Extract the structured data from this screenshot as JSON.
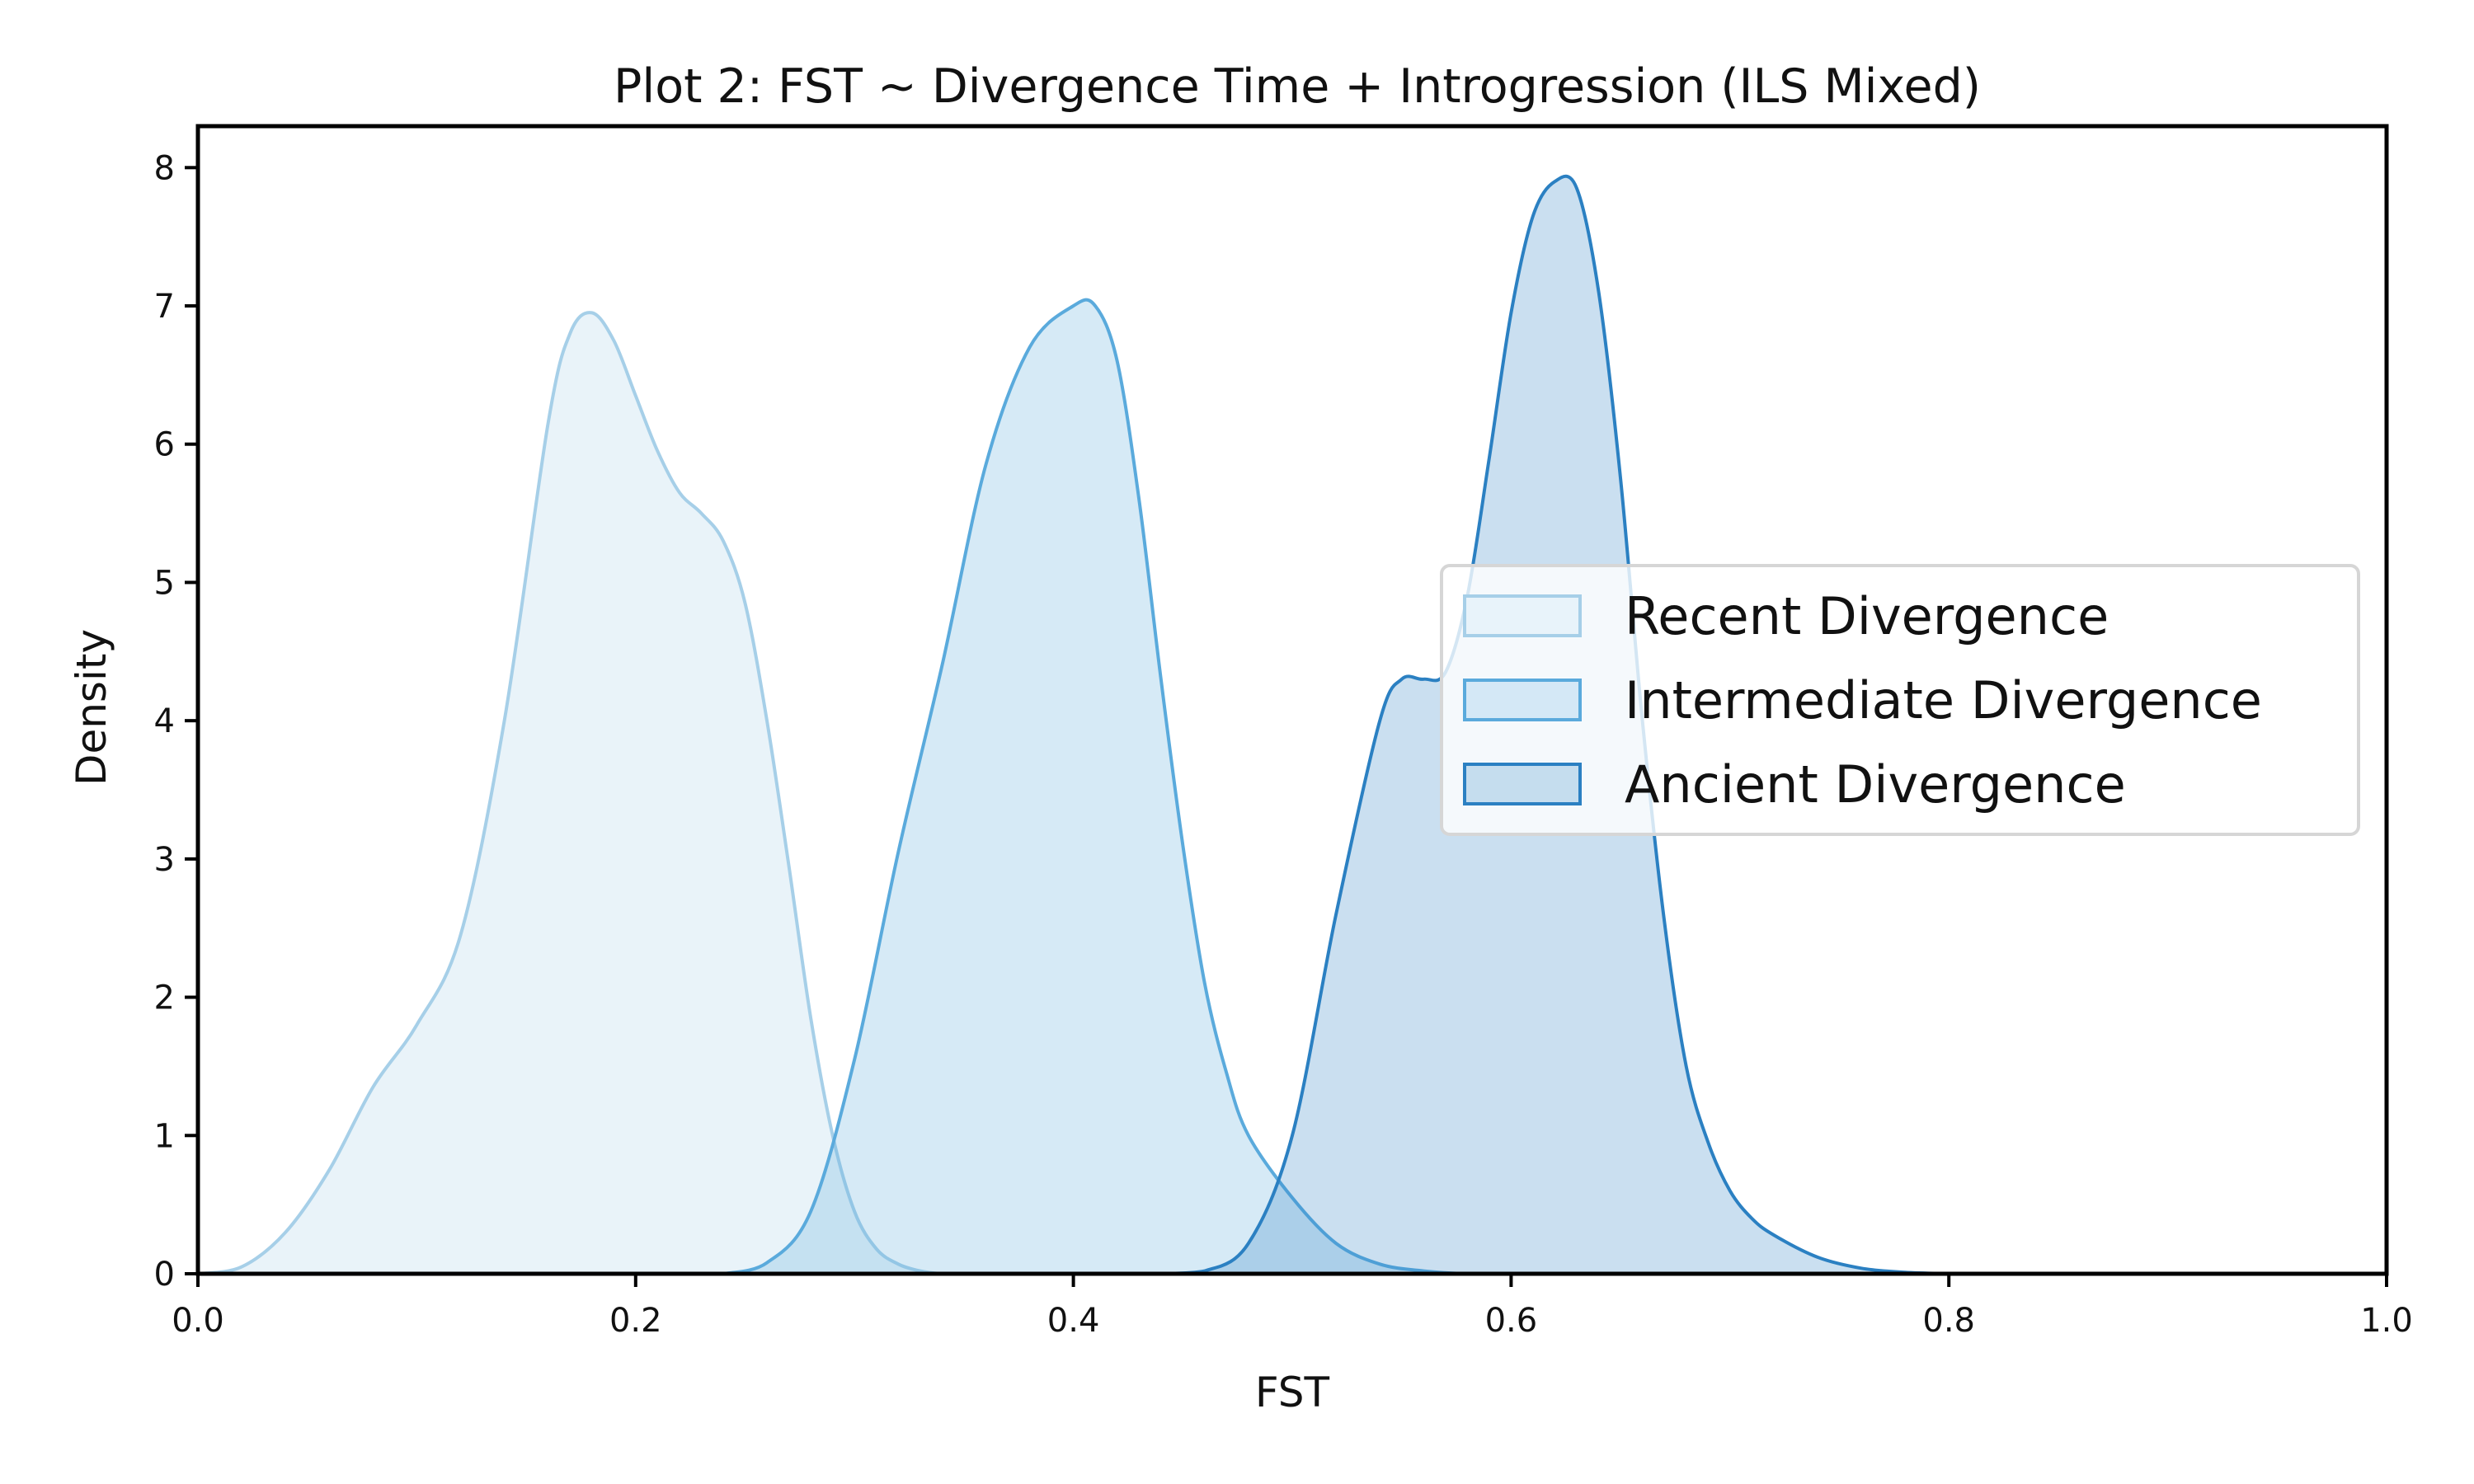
{
  "chart_data": {
    "type": "area",
    "title": "Plot 2: FST ~ Divergence Time + Introgression (ILS Mixed)",
    "xlabel": "FST",
    "ylabel": "Density",
    "xlim": [
      0.0,
      1.0
    ],
    "ylim": [
      0,
      8.3
    ],
    "xticks": [
      0.0,
      0.2,
      0.4,
      0.6,
      0.8,
      1.0
    ],
    "xtick_labels": [
      "0.0",
      "0.2",
      "0.4",
      "0.6",
      "0.8",
      "1.0"
    ],
    "yticks": [
      0,
      1,
      2,
      3,
      4,
      5,
      6,
      7,
      8
    ],
    "ytick_labels": [
      "0",
      "1",
      "2",
      "3",
      "4",
      "5",
      "6",
      "7",
      "8"
    ],
    "grid": false,
    "legend_position": "center-right",
    "series": [
      {
        "name": "Recent Divergence",
        "line_color": "#a6cfe8",
        "fill_color": "#e8f3fa",
        "x": [
          0.0,
          0.02,
          0.04,
          0.06,
          0.08,
          0.1,
          0.12,
          0.14,
          0.16,
          0.17,
          0.18,
          0.19,
          0.2,
          0.21,
          0.22,
          0.23,
          0.24,
          0.25,
          0.26,
          0.27,
          0.28,
          0.29,
          0.3,
          0.31,
          0.32,
          0.33,
          0.34,
          0.35,
          0.36
        ],
        "y": [
          0.0,
          0.05,
          0.3,
          0.75,
          1.35,
          1.8,
          2.45,
          4.0,
          6.15,
          6.8,
          6.95,
          6.75,
          6.35,
          5.95,
          5.65,
          5.5,
          5.3,
          4.85,
          4.0,
          2.95,
          1.85,
          1.0,
          0.45,
          0.18,
          0.07,
          0.02,
          0.0,
          0.0,
          0.0
        ]
      },
      {
        "name": "Intermediate Divergence",
        "line_color": "#5aaadc",
        "fill_color": "#d4e8f6",
        "x": [
          0.24,
          0.26,
          0.28,
          0.3,
          0.32,
          0.34,
          0.36,
          0.38,
          0.4,
          0.41,
          0.42,
          0.43,
          0.44,
          0.45,
          0.46,
          0.47,
          0.48,
          0.5,
          0.52,
          0.54,
          0.56,
          0.58,
          0.6
        ],
        "y": [
          0.0,
          0.08,
          0.45,
          1.55,
          3.05,
          4.4,
          5.85,
          6.7,
          7.0,
          7.0,
          6.6,
          5.6,
          4.3,
          3.1,
          2.1,
          1.45,
          1.0,
          0.55,
          0.22,
          0.07,
          0.02,
          0.0,
          0.0
        ]
      },
      {
        "name": "Ancient Divergence",
        "line_color": "#2b80c2",
        "fill_color": "#c5ddee",
        "x": [
          0.44,
          0.46,
          0.48,
          0.5,
          0.52,
          0.54,
          0.55,
          0.56,
          0.57,
          0.58,
          0.59,
          0.6,
          0.61,
          0.62,
          0.63,
          0.64,
          0.65,
          0.66,
          0.67,
          0.68,
          0.69,
          0.7,
          0.71,
          0.72,
          0.74,
          0.76,
          0.78,
          0.8
        ],
        "y": [
          0.0,
          0.02,
          0.22,
          1.0,
          2.6,
          4.0,
          4.3,
          4.3,
          4.35,
          4.9,
          5.9,
          6.95,
          7.65,
          7.9,
          7.85,
          7.1,
          5.75,
          4.0,
          2.55,
          1.5,
          0.95,
          0.6,
          0.4,
          0.28,
          0.12,
          0.04,
          0.01,
          0.0
        ]
      }
    ]
  }
}
